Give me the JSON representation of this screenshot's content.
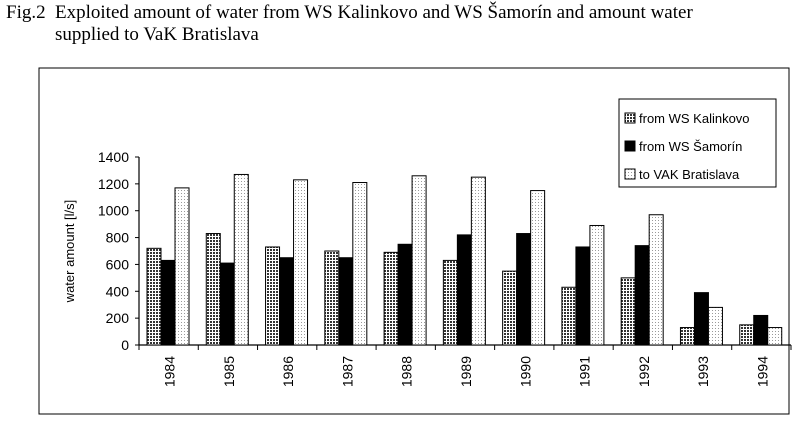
{
  "caption": {
    "label": "Fig.2",
    "line1": "Exploited amount of water from WS Kalinkovo and WS Šamorín and amount water",
    "line2": "supplied to VaK Bratislava"
  },
  "chart_data": {
    "type": "bar",
    "ylabel": "water amount [l/s]",
    "xlabel": "",
    "ylim": [
      0,
      1400
    ],
    "yticks": [
      0,
      200,
      400,
      600,
      800,
      1000,
      1200,
      1400
    ],
    "categories": [
      "1984",
      "1985",
      "1986",
      "1987",
      "1988",
      "1989",
      "1990",
      "1991",
      "1992",
      "1993",
      "1994"
    ],
    "legend_position": "top-right",
    "grid": false,
    "series": [
      {
        "name": "from WS Kalinkovo",
        "pattern": "dense-dots",
        "values": [
          720,
          830,
          730,
          700,
          690,
          630,
          550,
          430,
          500,
          130,
          150
        ]
      },
      {
        "name": "from WS Šamorín",
        "pattern": "solid-black",
        "values": [
          630,
          610,
          650,
          650,
          750,
          820,
          830,
          730,
          740,
          390,
          220
        ]
      },
      {
        "name": "to  VAK Bratislava",
        "pattern": "light-dots",
        "values": [
          1170,
          1270,
          1230,
          1210,
          1260,
          1250,
          1150,
          890,
          970,
          280,
          130
        ]
      }
    ]
  }
}
